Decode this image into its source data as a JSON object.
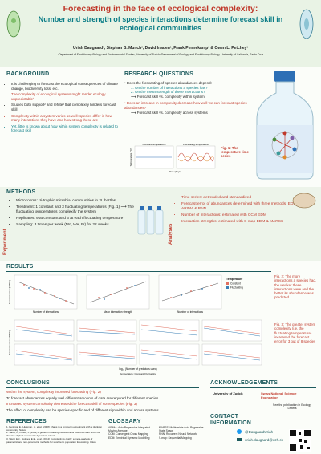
{
  "header": {
    "title": "Forecasting in the face of ecological complexity:",
    "subtitle": "Number and strength of species interactions determine forecast skill in ecological communities",
    "authors": "Uriah Daugaard¹, Stephan B. Munch², David Inauen¹, Frank Pennekamp¹ & Owen L. Petchey¹",
    "affiliations": "¹Department of Evolutionary Biology and Environmental Studies, University of Zurich ²Department of Ecology and Evolutionary Biology, University of California, Santa Cruz"
  },
  "background": {
    "heading": "BACKGROUND",
    "bullets": [
      "It is challenging to forecast the ecological consequences of climate change, biodiversity loss, etc.",
      "The complexity of ecological systems might render ecology unpredictable¹",
      "Studies both support² and refute³ that complexity hinders forecast skill",
      "Complexity within a system varies as well: species differ in how many interactions they have and how strong these are",
      "Yet, little is known about how within system complexity is related to forecast skill"
    ]
  },
  "research_questions": {
    "heading": "RESEARCH QUESTIONS",
    "q1": "Does the forecasting of species abundances depend:",
    "q1_items": [
      "1. On the number of interactions a species has?",
      "2. On the mean strength of these interactions?"
    ],
    "q1_arrow": "⟶ Forecast skill vs. complexity within system",
    "q2": "Does an increase in complexity decrease how well we can forecast species abundances?",
    "q2_arrow": "⟶ Forecast skill vs. complexity across systems"
  },
  "figure1": {
    "caption": "Fig. 1: The temperature time series",
    "panel_1": "Constant temperature",
    "panel_2": "Fluctuating temperature",
    "x_label": "Time (days)",
    "y_label": "Temperature (°C)"
  },
  "methods": {
    "heading": "METHODS",
    "experiment_label": "Experiment",
    "analyses_label": "Analyses",
    "experiment": [
      "Microcosms: tri-trophic microbial communities in 2L bottles",
      "Treatment: 1 constant and 3 fluctuating temperatures (Fig. 1) ⟶ The fluctuating temperatures complexify the system",
      "Replicates: 9 at constant and 3 at each fluctuating temperature",
      "Sampling: 3 times per week (Mo, We, Fr) for 22 weeks"
    ],
    "analyses": [
      "Time series: detrended and standardized",
      "Forecast error of abundances determined with three methods: EDM, ARIMA & RNN",
      "Number of interactions: estimated with CCM EDM",
      "Interaction strengths: estimated with S-map EDM & MARSS"
    ]
  },
  "results": {
    "heading": "RESULTS",
    "fig2_caption": "Fig. 2: The more interactions a species had, the weaker these interactions were and the better its abundance was predicted",
    "fig3_caption": "Fig. 3: The greater system complexity (i.e. the fluctuating temperature) increased the forecast error for 3 out of 8 species",
    "axis_interactions": "Number of interactions",
    "axis_strength": "Mean interaction strength",
    "axis_error": "Forecast error (RMSE)",
    "axis_predictors": "log₁₀ (Number of predictors used)",
    "legend_title": "Temperature",
    "legend_items": [
      "Constant",
      "Fluctuating"
    ],
    "bottom_legend": "Temperature: Constant Fluctuating"
  },
  "conclusions": {
    "heading": "CONCLUSIONS",
    "items": [
      "Within the system, complexity improved forecasting (Fig. 2)",
      "To forecast abundances equally well different amounts of data are required for different species",
      "Increased system complexity decreased the forecast skill of some species (Fig. 3)",
      "The effect of complexity can be species-specific and of different sign within and across systems"
    ]
  },
  "acknowledgements": {
    "heading": "ACKNOWLEDGEMENTS",
    "uzh": "University of Zurich",
    "snsf": "Swiss National Science Foundation",
    "publication": "See the publication in Ecology Letters"
  },
  "references": {
    "heading": "REFERENCES",
    "items": [
      "1. Beninca, E., Huisman, J., et al. (2008) Chaos in a long-term experiment with a plankton community. Nature",
      "2. Jabot, F., Pottier, J. (2012) A general modelling framework for resource-ratio and CSR theories of plant community dynamics. J Ecol",
      "3. Ward, E.J., Holmes, E.E., et al. (2014) Complexity is costly: a meta-analysis of parametric and non-parametric methods for short-term population forecasting. Oikos"
    ]
  },
  "glossary": {
    "heading": "GLOSSARY",
    "items": [
      "ARIMA: Auto Regressive Integrated Moving Average",
      "CCM: Convergent Cross Mapping",
      "EDM: Empirical Dynamic Modelling",
      "MARSS: Multivariate Auto-Regressive State Space",
      "RNN: Recurrent Neural Network",
      "S-map: Sequential Mapping"
    ]
  },
  "contact": {
    "heading": "CONTACT INFORMATION",
    "twitter": "@DaugaardUriah",
    "email": "uriah.daugaard@uzh.ch"
  }
}
